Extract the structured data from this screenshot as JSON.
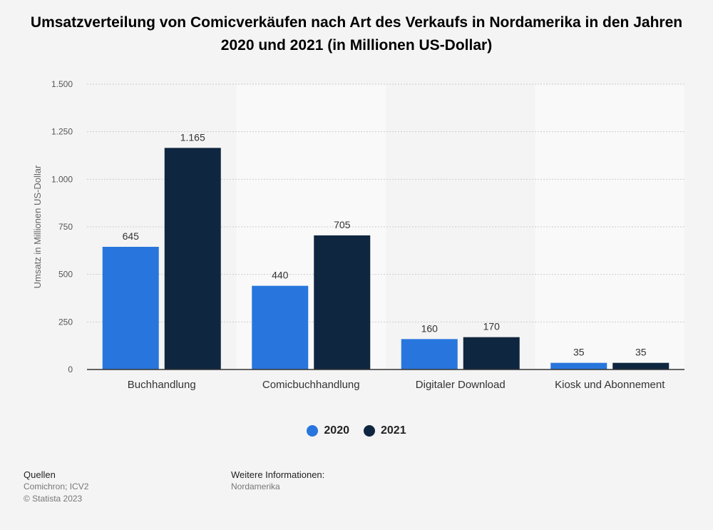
{
  "chart_data": {
    "type": "bar",
    "title": "Umsatzverteilung von Comicverkäufen nach Art des Verkaufs in Nordamerika in den Jahren 2020 und 2021 (in Millionen US-Dollar)",
    "xlabel": "",
    "ylabel": "Umsatz in Millionen US-Dollar",
    "ylim": [
      0,
      1500
    ],
    "yticks": [
      0,
      250,
      500,
      750,
      1000,
      1250,
      1500
    ],
    "ytick_labels": [
      "0",
      "250",
      "500",
      "750",
      "1.000",
      "1.250",
      "1.500"
    ],
    "categories": [
      "Buchhandlung",
      "Comicbuchhandlung",
      "Digitaler Download",
      "Kiosk und Abonnement"
    ],
    "series": [
      {
        "name": "2020",
        "color": "#2876dd",
        "values": [
          645,
          440,
          160,
          35
        ],
        "labels": [
          "645",
          "440",
          "160",
          "35"
        ]
      },
      {
        "name": "2021",
        "color": "#0f2640",
        "values": [
          1165,
          705,
          170,
          35
        ],
        "labels": [
          "1.165",
          "705",
          "170",
          "35"
        ]
      }
    ],
    "grid": true,
    "legend": "bottom-center"
  },
  "footer": {
    "sources_heading": "Quellen",
    "sources_text": "Comichron; ICV2",
    "copyright": "© Statista 2023",
    "info_heading": "Weitere Informationen:",
    "info_text": "Nordamerika"
  },
  "colors": {
    "background": "#f4f4f4",
    "band": "#f9f9f9",
    "grid": "#cccccc",
    "axis": "#333333"
  }
}
